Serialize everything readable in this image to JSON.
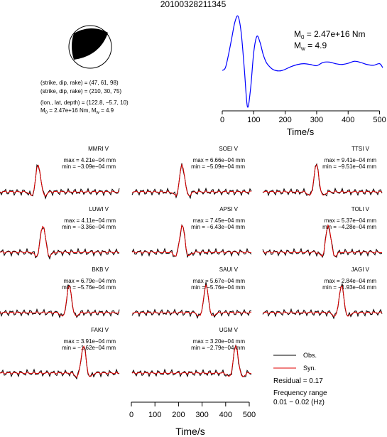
{
  "event_id": "20100328211345",
  "focal_mechanism": {
    "nodal_plane_1": "(strike, dip, rake) = (47, 61, 98)",
    "nodal_plane_2": "(strike, dip, rake) = (210, 30, 75)",
    "location": "(lon., lat, depth) = (122.8, −5.7, 10)",
    "moment_summary": "M₀ = 2.47e+16 Nm, Mᵥᵡ = 4.9",
    "moment_prefix": "M",
    "moment_sub": "0",
    "moment_val": " = 2.47e+16 Nm, M",
    "mw_sub": "w",
    "mw_val": " = 4.9"
  },
  "colors": {
    "observed": "#000000",
    "synthetic": "#e00000",
    "stf": "#0000ff",
    "beachball_fill": "#000000"
  },
  "chart_data": [
    {
      "type": "line",
      "name": "source-time-function",
      "xlabel": "Time/s",
      "xticks": [
        0,
        100,
        200,
        300,
        400,
        500
      ],
      "xlim": [
        0,
        510
      ],
      "annotation_m0_prefix": "M",
      "annotation_m0_sub": "0",
      "annotation_m0_val": " = 2.47e+16 Nm",
      "annotation_mw_prefix": "M",
      "annotation_mw_sub": "w",
      "annotation_mw_val": " = 4.9",
      "x": [
        0,
        10,
        20,
        30,
        40,
        50,
        60,
        70,
        80,
        90,
        100,
        110,
        120,
        130,
        140,
        150,
        160,
        170,
        180,
        190,
        200,
        220,
        240,
        260,
        280,
        300,
        320,
        340,
        360,
        380,
        400,
        420,
        440,
        460,
        480,
        500,
        510
      ],
      "y": [
        0.15,
        0.22,
        0.55,
        0.95,
        1.35,
        1.5,
        1.1,
        0.2,
        -0.75,
        -0.3,
        0.6,
        1.0,
        0.85,
        0.55,
        0.35,
        0.25,
        0.18,
        0.15,
        0.14,
        0.15,
        0.18,
        0.25,
        0.3,
        0.32,
        0.3,
        0.27,
        0.35,
        0.36,
        0.32,
        0.3,
        0.33,
        0.38,
        0.35,
        0.3,
        0.28,
        0.32,
        0.22
      ]
    },
    {
      "type": "line",
      "name": "waveform-fits",
      "xlabel": "Time/s",
      "xticks": [
        0,
        100,
        200,
        300,
        400,
        500
      ],
      "legend": {
        "observed": "Obs.",
        "synthetic": "Syn."
      },
      "residual": "Residual = 0.17",
      "frequency_label": "Frequency range",
      "frequency_value": "0.01 − 0.02 (Hz)",
      "stations": [
        {
          "name": "MMRI V",
          "max": "max = 4.21e−04 mm",
          "min": "min = −3.09e−04 mm"
        },
        {
          "name": "SOEI V",
          "max": "max = 6.66e−04 mm",
          "min": "min = −5.09e−04 mm"
        },
        {
          "name": "TTSI V",
          "max": "max = 9.41e−04 mm",
          "min": "min = −9.51e−04 mm"
        },
        {
          "name": "LUWI V",
          "max": "max = 4.11e−04 mm",
          "min": "min = −3.36e−04 mm"
        },
        {
          "name": "APSI V",
          "max": "max = 7.45e−04 mm",
          "min": "min = −6.43e−04 mm"
        },
        {
          "name": "TOLI V",
          "max": "max = 5.37e−04 mm",
          "min": "min = −4.28e−04 mm"
        },
        {
          "name": "BKB V",
          "max": "max = 6.79e−04 mm",
          "min": "min = −5.76e−04 mm"
        },
        {
          "name": "SAUI V",
          "max": "max = 5.67e−04 mm",
          "min": "min = −5.76e−04 mm"
        },
        {
          "name": "JAGI V",
          "max": "max = 2.84e−04 mm",
          "min": "min = −1.93e−04 mm"
        },
        {
          "name": "FAKI V",
          "max": "max = 3.91e−04 mm",
          "min": "min = −1.62e−04 mm"
        },
        {
          "name": "UGM V",
          "max": "max = 3.20e−04 mm",
          "min": "min = −2.79e−04 mm"
        }
      ]
    }
  ]
}
